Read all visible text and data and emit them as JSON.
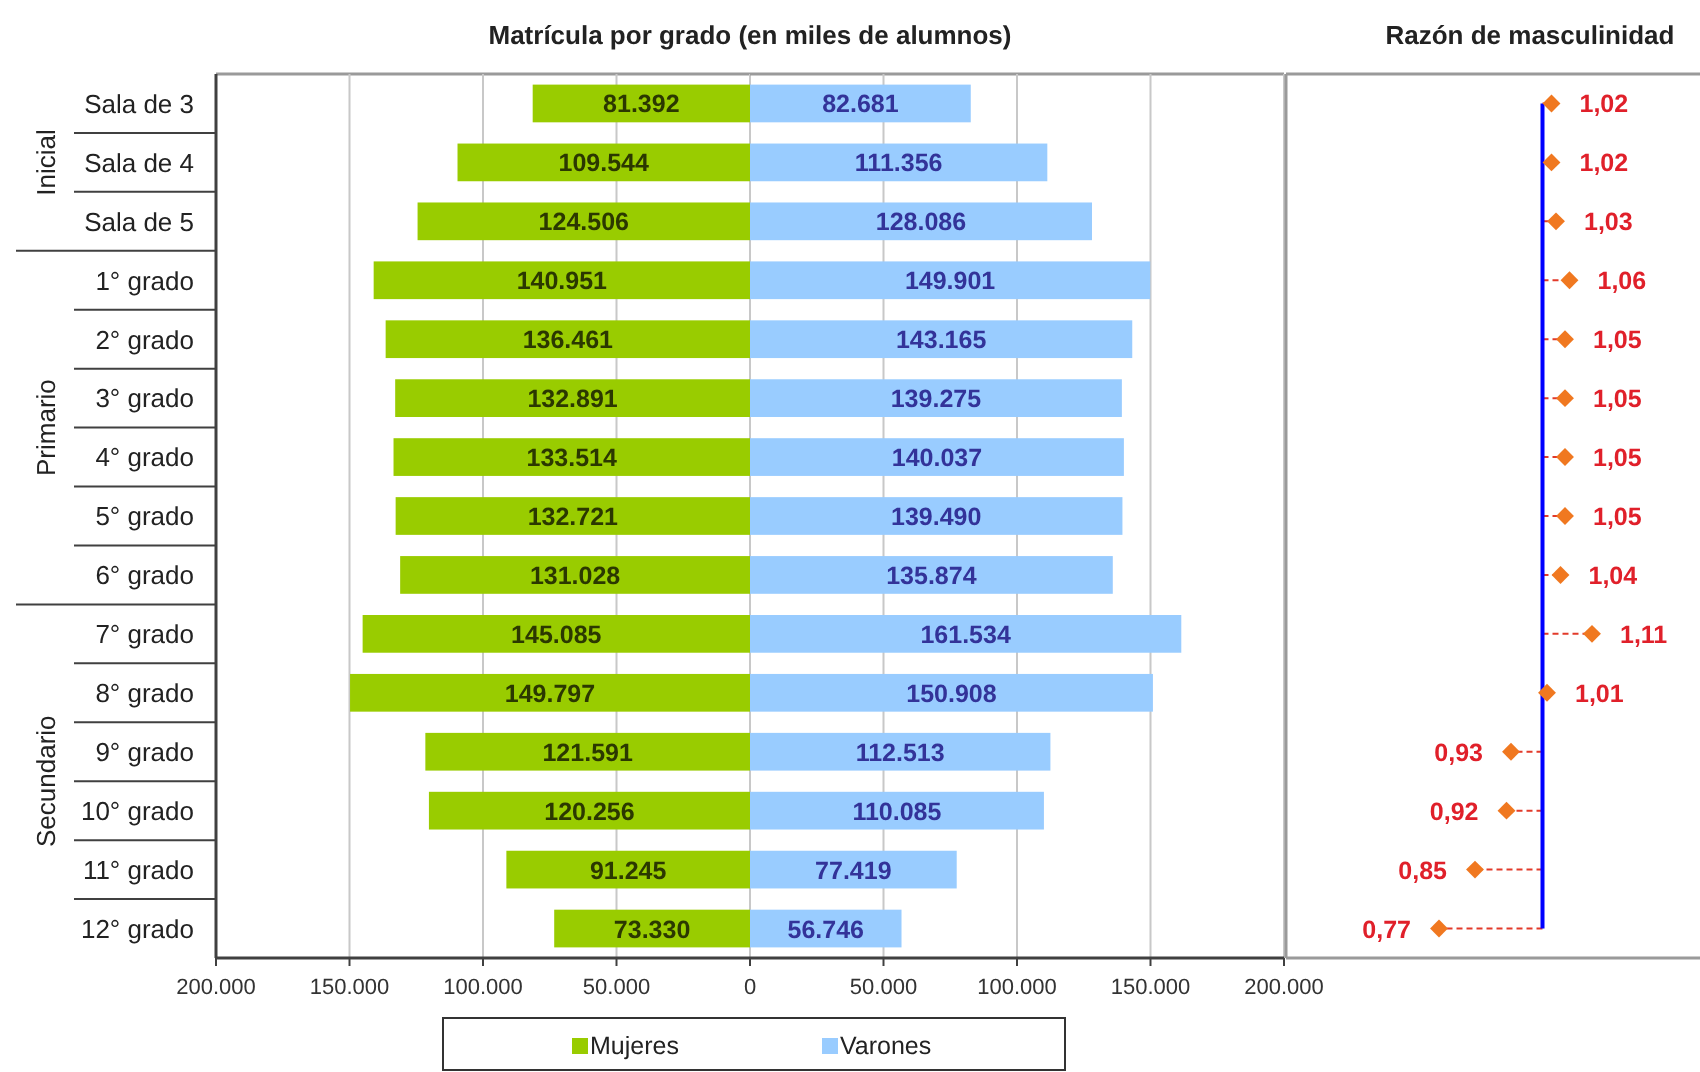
{
  "chart_data": [
    {
      "type": "bar",
      "orientation": "horizontal",
      "title": "Matrícula por grado (en miles de alumnos)",
      "categories": [
        "Sala de 3",
        "Sala de 4",
        "Sala de 5",
        "1° grado",
        "2° grado",
        "3° grado",
        "4° grado",
        "5° grado",
        "6° grado",
        "7° grado",
        "8° grado",
        "9° grado",
        "10° grado",
        "11° grado",
        "12° grado"
      ],
      "series": [
        {
          "name": "Mujeres",
          "color": "#99cc00",
          "values": [
            81392,
            109544,
            124506,
            140951,
            136461,
            132891,
            133514,
            132721,
            131028,
            145085,
            149797,
            121591,
            120256,
            91245,
            73330
          ],
          "value_labels": [
            "81.392",
            "109.544",
            "124.506",
            "140.951",
            "136.461",
            "132.891",
            "133.514",
            "132.721",
            "131.028",
            "145.085",
            "149.797",
            "121.591",
            "120.256",
            "91.245",
            "73.330"
          ]
        }
      ],
      "xlim": [
        200000,
        0
      ],
      "xticks": [
        {
          "value": 200000,
          "label": "200.000"
        },
        {
          "value": 150000,
          "label": "150.000"
        },
        {
          "value": 100000,
          "label": "100.000"
        },
        {
          "value": 50000,
          "label": "50.000"
        },
        0
      ],
      "grid": "x",
      "legend": "bottom",
      "annotations": [
        "Inicial",
        "Primario",
        "Secundario"
      ]
    },
    {
      "type": "bar",
      "orientation": "horizontal",
      "categories": [
        null,
        null,
        null,
        null,
        null,
        null,
        null,
        null,
        null,
        null,
        null,
        null,
        null,
        null,
        null
      ],
      "tick_labels": "x",
      "series": [
        {
          "name": "Varones",
          "color": "#99ccff",
          "values": [
            82681,
            111356,
            128086,
            149901,
            143165,
            139275,
            140037,
            139490,
            135874,
            161534,
            150908,
            112513,
            110085,
            77419,
            56746
          ],
          "value_labels": [
            "82.681",
            "111.356",
            "128.086",
            "149.901",
            "143.165",
            "139.275",
            "140.037",
            "139.490",
            "135.874",
            "161.534",
            "150.908",
            "112.513",
            "110.085",
            "77.419",
            "56.746"
          ]
        }
      ],
      "xlim": [
        0,
        200000
      ],
      "xticks": [
        {
          "value": 50000,
          "label": "50.000"
        },
        {
          "value": 100000,
          "label": "100.000"
        },
        {
          "value": 150000,
          "label": "150.000"
        },
        {
          "value": 200000,
          "label": "200.000"
        }
      ],
      "grid": "x",
      "legend": "bottom"
    },
    {
      "type": "lollipop",
      "orientation": "horizontal",
      "title": "Razón de masculinidad",
      "categories": [
        null,
        null,
        null,
        null,
        null,
        null,
        null,
        null,
        null,
        null,
        null,
        null,
        null,
        null,
        null
      ],
      "tick_labels": false,
      "values": [
        1.02,
        1.02,
        1.03,
        1.06,
        1.05,
        1.05,
        1.05,
        1.05,
        1.04,
        1.11,
        1.01,
        0.93,
        0.92,
        0.85,
        0.77
      ],
      "value_labels": [
        "1,02",
        "1,02",
        "1,03",
        "1,06",
        "1,05",
        "1,05",
        "1,05",
        "1,05",
        "1,04",
        "1,11",
        "1,01",
        "0,93",
        "0,92",
        "0,85",
        "0,77"
      ],
      "color": "#f07820",
      "xlim": [
        0.43,
        1.35
      ],
      "ref_lines": [
        {
          "axis": "x",
          "value": 1,
          "color": "#0000ff"
        }
      ],
      "marker": "diamond",
      "line_style": "dashed"
    }
  ]
}
